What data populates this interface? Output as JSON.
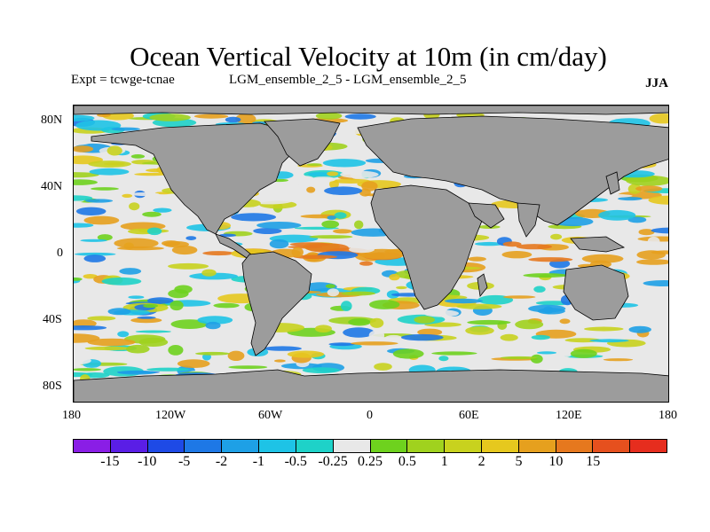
{
  "header": {
    "title": "Ocean Vertical Velocity at 10m (in cm/day)",
    "experiment": "Expt = tcwge-tcnae",
    "runs": "LGM_ensemble_2_5 - LGM_ensemble_2_5",
    "season": "JJA"
  },
  "map": {
    "lat_labels": [
      "80N",
      "40N",
      "0",
      "40S",
      "80S"
    ],
    "lon_labels": [
      "180",
      "120W",
      "60W",
      "0",
      "60E",
      "120E",
      "180"
    ],
    "land_color": "#9c9c9c",
    "neutral_color": "#e8e8e8"
  },
  "colorbar": {
    "colors": [
      "#8a1ee6",
      "#5a1ee6",
      "#1e4ae6",
      "#1e78e6",
      "#1ea0e6",
      "#1ec3e6",
      "#1ed2c8",
      "#e8e8e8",
      "#6ed21e",
      "#a0d21e",
      "#c8d21e",
      "#e6c81e",
      "#e6a01e",
      "#e6781e",
      "#e6501e",
      "#e62d1e"
    ],
    "labels": [
      "-15",
      "-10",
      "-5",
      "-2",
      "-1",
      "-0.5",
      "-0.25",
      "0.25",
      "0.5",
      "1",
      "2",
      "5",
      "10",
      "15"
    ]
  }
}
